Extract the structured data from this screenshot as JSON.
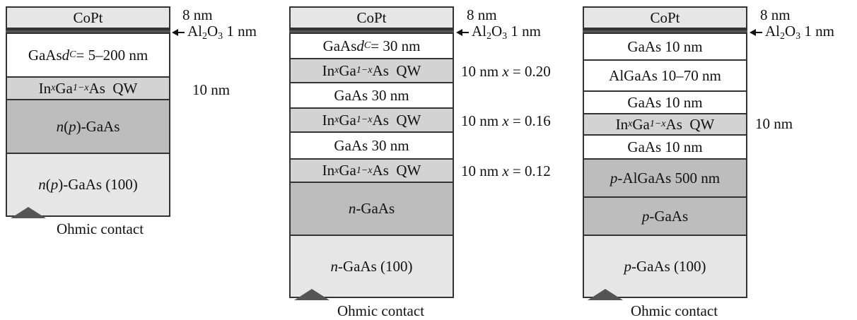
{
  "colors": {
    "cap": "#e6e6e6",
    "qw": "#d3d3d3",
    "dark": "#bdbdbd",
    "light": "#e6e6e6",
    "al2o3": "#555555"
  },
  "stacks": [
    {
      "cap_label": "CoPt",
      "cap_thickness": "8 nm",
      "al2o3_prefix": "Al",
      "al2o3_sub1": "2",
      "al2o3_mid": "O",
      "al2o3_sub2": "3",
      "al2o3_thickness": " 1 nm",
      "layers": [
        {
          "pre": "GaAs ",
          "var": "d",
          "sub": "C",
          "post": " = 5–200 nm"
        },
        {
          "qw": true,
          "pre": "In",
          "sub1": "x",
          "mid": "Ga",
          "sub2": "1−x",
          "post": "As  QW",
          "note": "10 nm"
        },
        {
          "var2": "n",
          "paren": "p",
          "post": "-GaAs"
        },
        {
          "var2": "n",
          "paren": "p",
          "post": "-GaAs (100)"
        }
      ],
      "contact_label": "Ohmic contact"
    },
    {
      "cap_label": "CoPt",
      "cap_thickness": "8 nm",
      "al2o3_prefix": "Al",
      "al2o3_sub1": "2",
      "al2o3_mid": "O",
      "al2o3_sub2": "3",
      "al2o3_thickness": " 1 nm",
      "layers": [
        {
          "pre": "GaAs ",
          "var": "d",
          "sub": "C",
          "post": " = 30 nm"
        },
        {
          "qw": true,
          "pre": "In",
          "sub1": "x",
          "mid": "Ga",
          "sub2": "1−x",
          "post": "As  QW",
          "note_pre": "10 nm ",
          "note_var": "x",
          "note_post": " = 0.20"
        },
        {
          "text": "GaAs 30 nm"
        },
        {
          "qw": true,
          "pre": "In",
          "sub1": "x",
          "mid": "Ga",
          "sub2": "1−x",
          "post": "As  QW",
          "note_pre": "10 nm ",
          "note_var": "x",
          "note_post": " = 0.16"
        },
        {
          "text": "GaAs 30 nm"
        },
        {
          "qw": true,
          "pre": "In",
          "sub1": "x",
          "mid": "Ga",
          "sub2": "1−x",
          "post": "As  QW",
          "note_pre": "10 nm ",
          "note_var": "x",
          "note_post": " = 0.12"
        },
        {
          "var2": "n",
          "post": "-GaAs"
        },
        {
          "var2": "n",
          "post": "-GaAs (100)"
        }
      ],
      "contact_label": "Ohmic contact"
    },
    {
      "cap_label": "CoPt",
      "cap_thickness": "8 nm",
      "al2o3_prefix": "Al",
      "al2o3_sub1": "2",
      "al2o3_mid": "O",
      "al2o3_sub2": "3",
      "al2o3_thickness": " 1 nm",
      "layers": [
        {
          "text": "GaAs 10 nm"
        },
        {
          "text": "AlGaAs 10–70 nm"
        },
        {
          "text": "GaAs 10 nm"
        },
        {
          "qw": true,
          "pre": "In",
          "sub1": "x",
          "mid": "Ga",
          "sub2": "1−x",
          "post": "As  QW",
          "note": "10 nm"
        },
        {
          "text": "GaAs 10 nm"
        },
        {
          "var2": "p",
          "post": "-AlGaAs 500 nm"
        },
        {
          "var2": "p",
          "post": "-GaAs"
        },
        {
          "var2": "p",
          "post": "-GaAs (100)"
        }
      ],
      "contact_label": "Ohmic contact"
    }
  ]
}
